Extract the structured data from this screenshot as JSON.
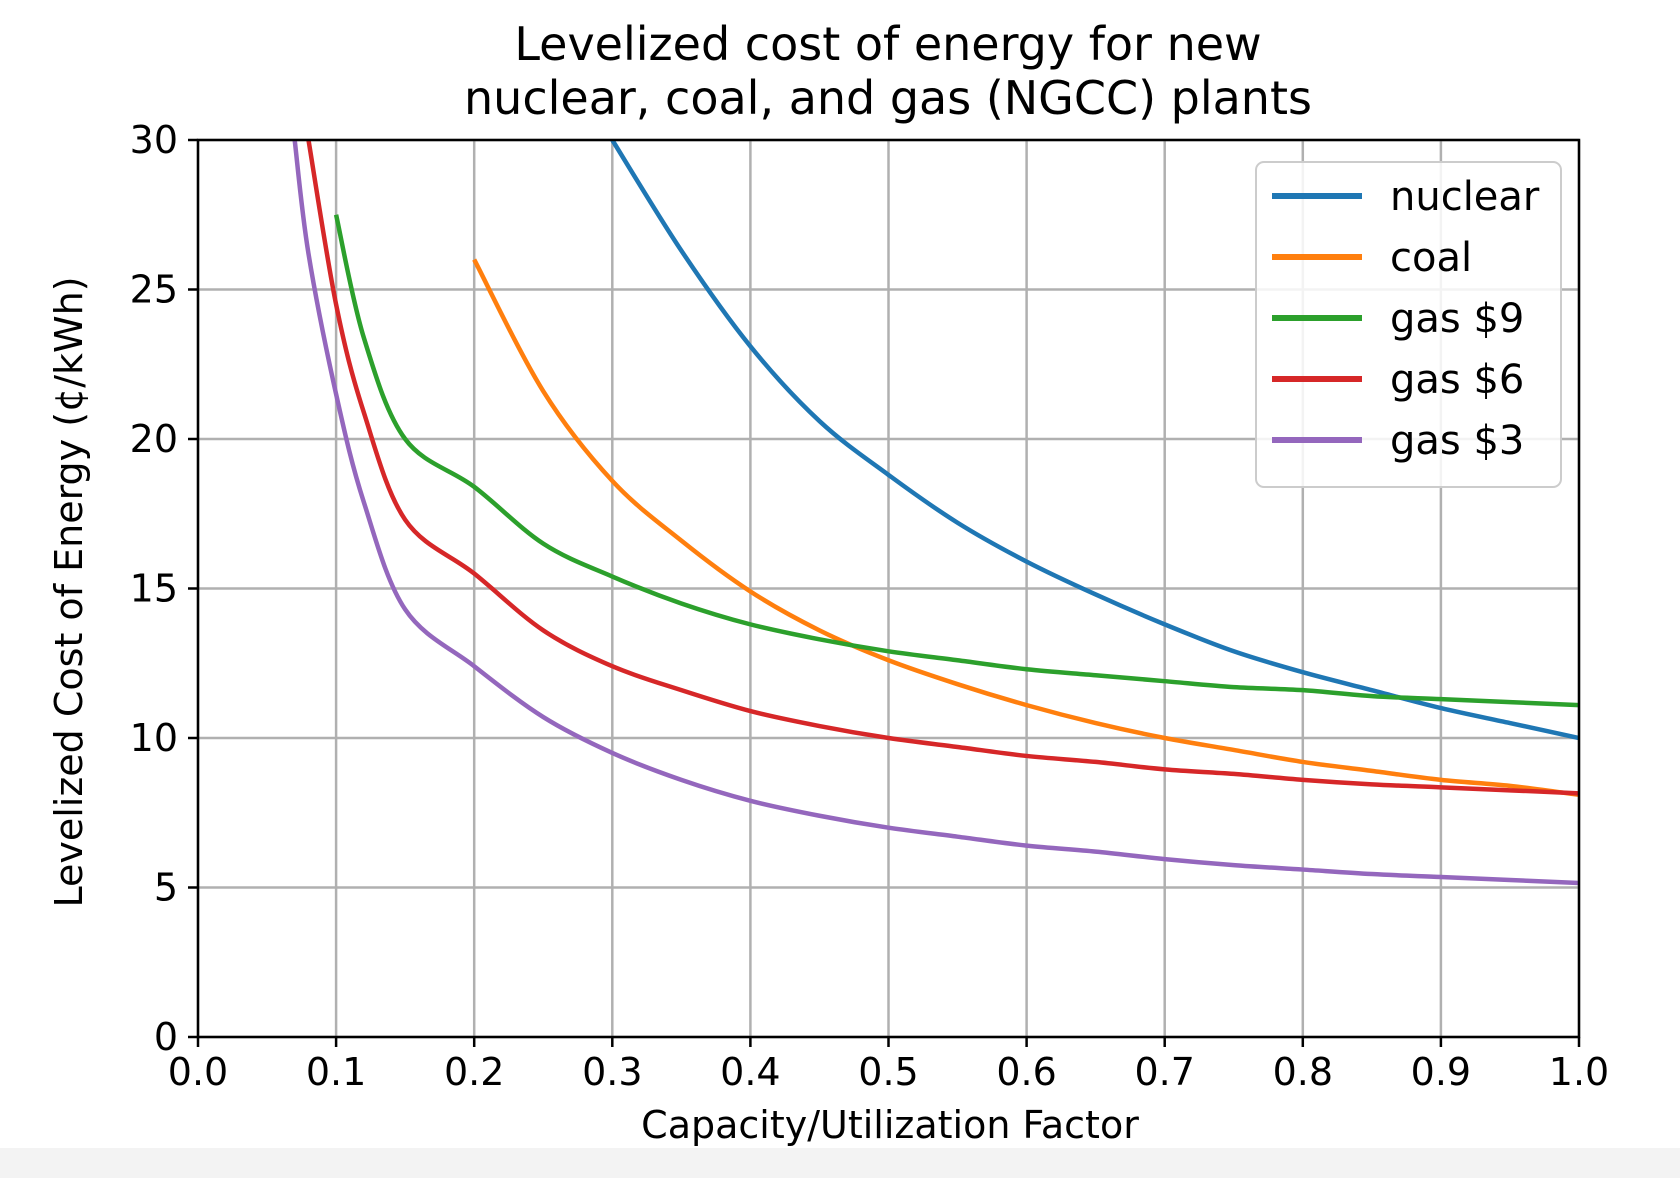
{
  "chart_data": {
    "type": "line",
    "title": "Levelized cost of energy for new\nnuclear, coal, and gas (NGCC) plants",
    "title_lines": [
      "Levelized cost of energy for new",
      "nuclear, coal, and gas (NGCC) plants"
    ],
    "xlabel": "Capacity/Utilization Factor",
    "ylabel": "Levelized Cost of Energy (¢/kWh)",
    "xlim": [
      0.0,
      1.0
    ],
    "ylim": [
      0,
      30
    ],
    "x_ticks": [
      "0.0",
      "0.1",
      "0.2",
      "0.3",
      "0.4",
      "0.5",
      "0.6",
      "0.7",
      "0.8",
      "0.9",
      "1.0"
    ],
    "y_ticks": [
      "0",
      "5",
      "10",
      "15",
      "20",
      "25",
      "30"
    ],
    "grid": true,
    "legend_position": "top-right",
    "x": [
      0.07,
      0.08,
      0.1,
      0.12,
      0.15,
      0.2,
      0.25,
      0.3,
      0.35,
      0.4,
      0.45,
      0.5,
      0.55,
      0.6,
      0.65,
      0.7,
      0.75,
      0.8,
      0.85,
      0.9,
      0.95,
      1.0
    ],
    "series": [
      {
        "name": "nuclear",
        "color": "#1f77b4",
        "values": [
          null,
          null,
          null,
          null,
          null,
          null,
          null,
          30.0,
          26.3,
          23.1,
          20.6,
          18.8,
          17.2,
          15.9,
          14.8,
          13.8,
          12.9,
          12.2,
          11.6,
          11.0,
          10.5,
          10.0
        ]
      },
      {
        "name": "coal",
        "color": "#ff7f0e",
        "values": [
          null,
          null,
          null,
          null,
          null,
          26.0,
          21.6,
          18.6,
          16.6,
          14.9,
          13.6,
          12.6,
          11.8,
          11.1,
          10.5,
          10.0,
          9.6,
          9.2,
          8.9,
          8.6,
          8.4,
          8.1
        ]
      },
      {
        "name": "gas $9",
        "color": "#2ca02c",
        "values": [
          null,
          null,
          27.5,
          23.4,
          20.0,
          18.4,
          16.5,
          15.4,
          14.5,
          13.8,
          13.3,
          12.9,
          12.6,
          12.3,
          12.1,
          11.9,
          11.7,
          11.6,
          11.4,
          11.3,
          11.2,
          11.1
        ]
      },
      {
        "name": "gas $6",
        "color": "#d62728",
        "values": [
          null,
          30.0,
          24.5,
          20.9,
          17.3,
          15.5,
          13.6,
          12.4,
          11.6,
          10.9,
          10.4,
          10.0,
          9.7,
          9.4,
          9.2,
          8.95,
          8.8,
          8.6,
          8.45,
          8.35,
          8.25,
          8.15
        ]
      },
      {
        "name": "gas $3",
        "color": "#9467bd",
        "values": [
          30.0,
          26.2,
          21.5,
          17.9,
          14.3,
          12.4,
          10.7,
          9.5,
          8.6,
          7.9,
          7.4,
          7.0,
          6.7,
          6.4,
          6.2,
          5.95,
          5.75,
          5.6,
          5.45,
          5.35,
          5.25,
          5.15
        ]
      }
    ]
  }
}
